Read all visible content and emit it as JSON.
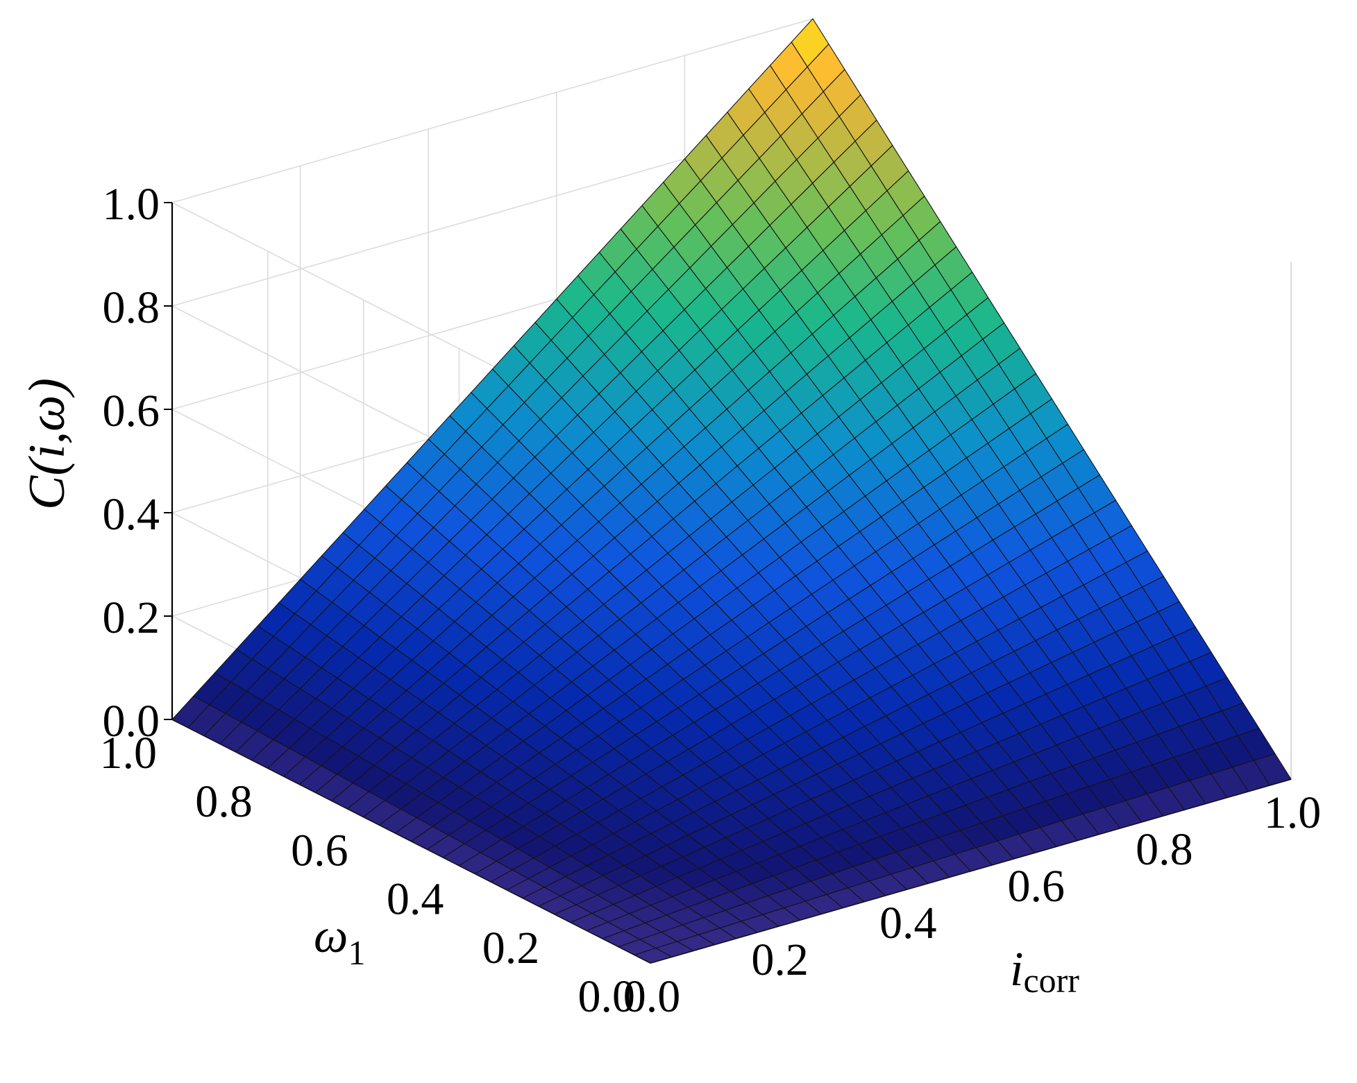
{
  "chart_data": {
    "type": "surface3d",
    "xlabel": "i",
    "xlabel_sub": "corr",
    "ylabel": "ω",
    "ylabel_sub": "1",
    "zlabel": "C(i,ω)",
    "x_ticks": [
      "0.0",
      "0.2",
      "0.4",
      "0.6",
      "0.8",
      "1.0"
    ],
    "y_ticks": [
      "0.0",
      "0.2",
      "0.4",
      "0.6",
      "0.8",
      "1.0"
    ],
    "z_ticks": [
      "0.0",
      "0.2",
      "0.4",
      "0.6",
      "0.8",
      "1.0"
    ],
    "xlim": [
      0,
      1
    ],
    "ylim": [
      0,
      1
    ],
    "zlim": [
      0,
      1
    ],
    "grid": true,
    "colormap": "parula",
    "mesh": 30,
    "surface_samples": [
      {
        "i": 0.0,
        "w": 0.0,
        "C": 0.0
      },
      {
        "i": 1.0,
        "w": 0.0,
        "C": 0.0
      },
      {
        "i": 0.0,
        "w": 1.0,
        "C": 0.0
      },
      {
        "i": 0.5,
        "w": 0.5,
        "C": 0.25
      },
      {
        "i": 1.0,
        "w": 0.5,
        "C": 0.5
      },
      {
        "i": 0.5,
        "w": 1.0,
        "C": 0.5
      },
      {
        "i": 1.0,
        "w": 1.0,
        "C": 1.0
      }
    ]
  }
}
